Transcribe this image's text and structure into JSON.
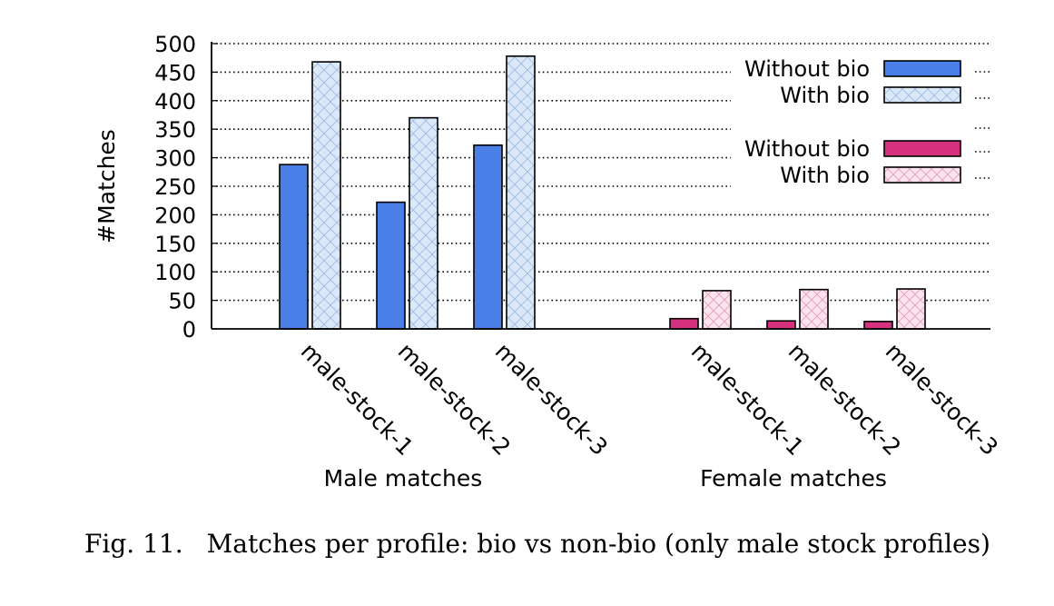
{
  "chart_data": {
    "type": "bar",
    "title": "",
    "ylabel": "#Matches",
    "ylim": [
      0,
      500
    ],
    "yticks": [
      0,
      50,
      100,
      150,
      200,
      250,
      300,
      350,
      400,
      450,
      500
    ],
    "grid": true,
    "legend_position": "top-right",
    "groups": [
      {
        "label": "Male matches",
        "categories": [
          "male-stock-1",
          "male-stock-2",
          "male-stock-3"
        ],
        "series": [
          {
            "name": "Without bio",
            "color": "#4a7fe8",
            "pattern": "solid",
            "values": [
              288,
              222,
              322
            ]
          },
          {
            "name": "With bio",
            "color": "#dbe8f8",
            "pattern": "crosshatch-blue",
            "values": [
              468,
              370,
              478
            ]
          }
        ]
      },
      {
        "label": "Female matches",
        "categories": [
          "male-stock-1",
          "male-stock-2",
          "male-stock-3"
        ],
        "series": [
          {
            "name": "Without bio",
            "color": "#d6317f",
            "pattern": "solid",
            "values": [
              18,
              14,
              13
            ]
          },
          {
            "name": "With bio",
            "color": "#fbe3ee",
            "pattern": "crosshatch-pink",
            "values": [
              67,
              69,
              70
            ]
          }
        ]
      }
    ]
  },
  "caption": {
    "label": "Fig. 11.",
    "text": "Matches per profile: bio vs non-bio (only male stock profiles)"
  }
}
